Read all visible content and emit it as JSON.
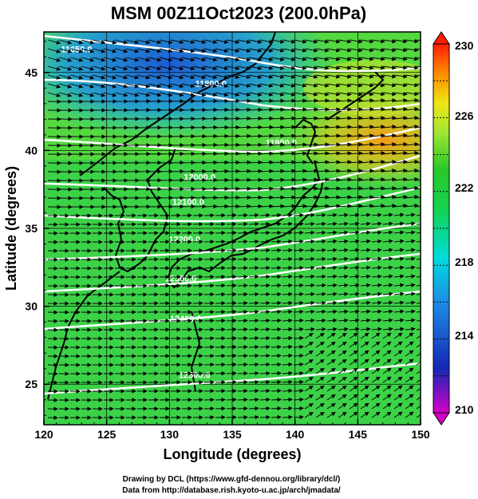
{
  "title": "MSM 00Z11Oct2023 (200.0hPa)",
  "xlabel": "Longitude (degrees)",
  "ylabel": "Latitude  (degrees)",
  "credits": [
    "Drawing by DCL (https://www.gfd-dennou.org/library/dcl/)",
    "Data from http://database.rish.kyoto-u.ac.jp/arch/jmadata/"
  ],
  "map": {
    "lon_range": [
      120,
      150
    ],
    "lat_range": [
      22.4,
      47.6
    ],
    "lon_ticks": [
      "120",
      "125",
      "130",
      "135",
      "140",
      "145",
      "150"
    ],
    "lat_ticks": [
      "25",
      "30",
      "35",
      "40",
      "45"
    ],
    "field": "temperature (shaded)",
    "vectors": "wind arrows",
    "contour_lines": "geopotential height (white)",
    "contour_labels": [
      {
        "text": "11650.0",
        "lon": 122.6,
        "lat": 46.3
      },
      {
        "text": "11800.0",
        "lon": 133.3,
        "lat": 44.1
      },
      {
        "text": "11900.0",
        "lon": 138.9,
        "lat": 40.3
      },
      {
        "text": "12000.0",
        "lon": 132.4,
        "lat": 38.1
      },
      {
        "text": "12100.0",
        "lon": 131.5,
        "lat": 36.5
      },
      {
        "text": "12200.0",
        "lon": 131.2,
        "lat": 34.1
      },
      {
        "text": "12300.0",
        "lon": 130.9,
        "lat": 31.6
      },
      {
        "text": "12400.0",
        "lon": 131.3,
        "lat": 29.0
      },
      {
        "text": "12500.0",
        "lon": 132.0,
        "lat": 25.4
      }
    ]
  },
  "colorbar": {
    "min": 210,
    "max": 230,
    "tick_labels": [
      "230",
      "226",
      "222",
      "218",
      "214",
      "210"
    ],
    "colors": [
      "#cc00cc",
      "#1e3cc8",
      "#1e78e6",
      "#00c8ff",
      "#14dc64",
      "#32c832",
      "#a0e632",
      "#ffe600",
      "#ff8c00",
      "#ff2800"
    ]
  }
}
